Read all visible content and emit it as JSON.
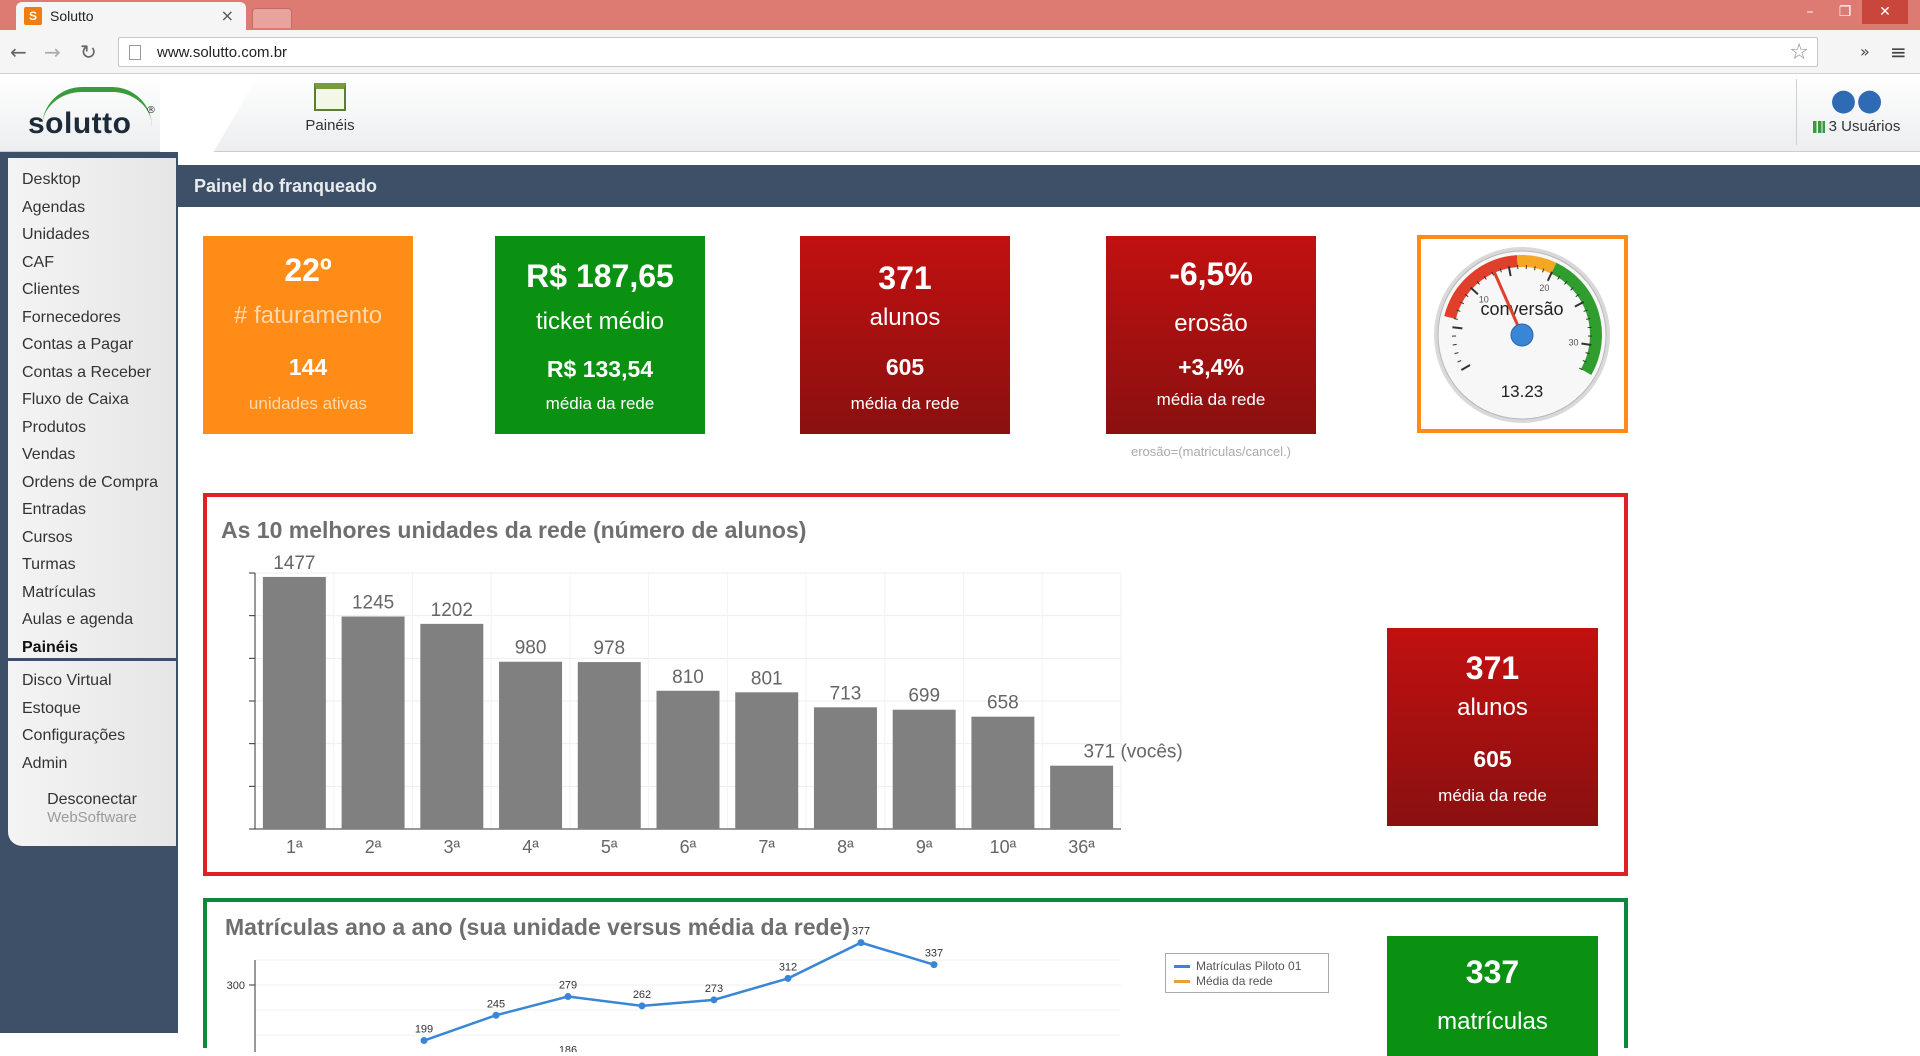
{
  "browser": {
    "tab_title": "Solutto",
    "tab_close": "×",
    "favicon_glyph": "S",
    "url": "www.solutto.com.br",
    "window_buttons": {
      "minimize": "–",
      "maximize": "❐",
      "close": "✕"
    },
    "nav": {
      "back": "←",
      "forward": "→",
      "reload": "↻",
      "star": "☆",
      "extensions": "»",
      "menu": "≡"
    }
  },
  "header": {
    "logo_text": "solutto",
    "logo_reg": "®",
    "nav_paineis": "Painéis",
    "users_label": "3 Usuários"
  },
  "sidebar": {
    "items": [
      {
        "label": "Desktop"
      },
      {
        "label": "Agendas"
      },
      {
        "label": "Unidades"
      },
      {
        "label": "CAF"
      },
      {
        "label": "Clientes"
      },
      {
        "label": "Fornecedores"
      },
      {
        "label": "Contas a Pagar"
      },
      {
        "label": "Contas a Receber"
      },
      {
        "label": "Fluxo de Caixa"
      },
      {
        "label": "Produtos"
      },
      {
        "label": "Vendas"
      },
      {
        "label": "Ordens de Compra"
      },
      {
        "label": "Entradas"
      },
      {
        "label": "Cursos"
      },
      {
        "label": "Turmas"
      },
      {
        "label": "Matrículas"
      },
      {
        "label": "Aulas e agenda"
      },
      {
        "label": "Painéis",
        "active": true
      }
    ],
    "items2": [
      {
        "label": "Disco Virtual"
      },
      {
        "label": "Estoque"
      },
      {
        "label": "Configurações"
      },
      {
        "label": "Admin"
      }
    ],
    "disconnect": "Desconectar",
    "websoftware": "WebSoftware"
  },
  "main": {
    "title": "Painel do franqueado",
    "kpis": {
      "faturamento": {
        "v1": "22º",
        "l1": "# faturamento",
        "v2": "144",
        "l2": "unidades ativas"
      },
      "ticket": {
        "v1": "R$ 187,65",
        "l1": "ticket médio",
        "v2": "R$ 133,54",
        "l2": "média da rede"
      },
      "alunos": {
        "v1": "371",
        "l1": "alunos",
        "v2": "605",
        "l2": "média da rede"
      },
      "erosao": {
        "v1": "-6,5%",
        "l1": "erosão",
        "v2": "+3,4%",
        "l2": "média da rede"
      }
    },
    "erosao_note": "erosão=(matriculas/cancel.)",
    "gauge": {
      "label": "conversão",
      "value": 13.23,
      "value_text": "13.23",
      "min": 0,
      "max": 33,
      "tick_labels": [
        "10",
        "20",
        "30"
      ],
      "bands": [
        {
          "from": 6,
          "to": 16,
          "color": "#e0402b"
        },
        {
          "from": 16,
          "to": 20,
          "color": "#f5a623"
        },
        {
          "from": 20,
          "to": 33,
          "color": "#2f9e2f"
        }
      ]
    },
    "top_panel": {
      "title": "As 10 melhores unidades da rede (número de alunos)",
      "side_kpi": {
        "v1": "371",
        "l1": "alunos",
        "v2": "605",
        "l2": "média da rede"
      }
    },
    "bottom_panel": {
      "title": "Matrículas ano a ano (sua unidade versus média da rede)",
      "side_kpi": {
        "v1": "337",
        "l1": "matrículas"
      },
      "legend": [
        "Matrículas Piloto 01",
        "Média da rede"
      ]
    }
  },
  "colors": {
    "orange": "#ff8c16",
    "green": "#0b9111",
    "red": "#c21010",
    "navy": "#3d5068",
    "bar_gray": "#808080",
    "line_blue": "#3a86d6",
    "line_orange": "#e8a13a"
  },
  "chart_data": [
    {
      "type": "bar",
      "title": "As 10 melhores unidades da rede (número de alunos)",
      "categories": [
        "1ª",
        "2ª",
        "3ª",
        "4ª",
        "5ª",
        "6ª",
        "7ª",
        "8ª",
        "9ª",
        "10ª",
        "36ª"
      ],
      "values": [
        1477,
        1245,
        1202,
        980,
        978,
        810,
        801,
        713,
        699,
        658,
        371
      ],
      "data_labels": [
        "1477",
        "1245",
        "1202",
        "980",
        "978",
        "810",
        "801",
        "713",
        "699",
        "658",
        "371 (vocês)"
      ],
      "ylim": [
        0,
        1500
      ],
      "grid": true
    },
    {
      "type": "line",
      "title": "Matrículas ano a ano (sua unidade versus média da rede)",
      "x": [
        "1",
        "2",
        "3",
        "4",
        "5",
        "6",
        "7",
        "8"
      ],
      "series": [
        {
          "name": "Matrículas Piloto 01",
          "values": [
            199,
            245,
            279,
            262,
            273,
            312,
            377,
            337
          ]
        },
        {
          "name": "Média da rede",
          "values": [
            null,
            null,
            186,
            null,
            null,
            null,
            null,
            null
          ]
        }
      ],
      "y_tick_labels": [
        "300"
      ],
      "ylim": [
        180,
        400
      ],
      "legend": "top-right",
      "grid": true
    }
  ]
}
